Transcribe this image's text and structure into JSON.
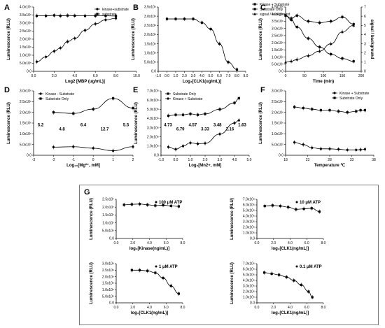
{
  "figure": {
    "panel_labels": [
      "A",
      "B",
      "C",
      "D",
      "E",
      "F",
      "G"
    ]
  },
  "chart_data": [
    {
      "id": "A",
      "type": "line",
      "xlabel": "Log2 [MBP (ug/mL)]",
      "ylabel": "Luminescence (RLU)",
      "xlim": [
        0,
        10
      ],
      "ylim": [
        0,
        4000000
      ],
      "xticks": [
        "0.0",
        "2.0",
        "4.0",
        "6.0",
        "8.0",
        "10.0"
      ],
      "yticks": [
        "0.0",
        "5.0x10⁵",
        "1.0x10⁶",
        "1.5x10⁶",
        "2.0x10⁶",
        "2.5x10⁶",
        "3.0x10⁶",
        "3.5x10⁶",
        "4.0x10⁶"
      ],
      "legend_position": "top-right",
      "series": [
        {
          "name": "kinase+substrate",
          "marker": "circle",
          "fit": "sigmoid",
          "x": [
            0.3,
            1.2,
            2.0,
            2.6,
            3.3,
            4.0,
            5.0,
            6.0,
            7.0,
            8.0
          ],
          "y": [
            600000,
            900000,
            1250000,
            1450000,
            1850000,
            2050000,
            2550000,
            2950000,
            3200000,
            3300000
          ]
        },
        {
          "name": "substrate",
          "marker": "square",
          "x": [
            0.3,
            1.2,
            2.0,
            2.6,
            3.3,
            4.0,
            5.0,
            6.0,
            7.0,
            8.0
          ],
          "y": [
            3450000,
            3450000,
            3480000,
            3450000,
            3470000,
            3460000,
            3450000,
            3450000,
            3450000,
            3440000
          ]
        }
      ]
    },
    {
      "id": "B",
      "type": "line",
      "xlabel": "Log₂[CLK1(ug/mL)]",
      "ylabel": "Luminescence (RLU)",
      "xlim": [
        -1,
        9
      ],
      "ylim": [
        0,
        3500000
      ],
      "xticks": [
        "-1.0",
        "0.0",
        "1.0",
        "2.0",
        "3.0",
        "4.0",
        "5.0",
        "6.0",
        "7.0",
        "8.0",
        "9.0"
      ],
      "yticks": [
        "0.0",
        "5.0x10⁵",
        "1.0x10⁶",
        "1.5x10⁶",
        "2.0x10⁶",
        "2.5x10⁶",
        "3.0x10⁶",
        "3.5x10⁶"
      ],
      "series": [
        {
          "marker": "square",
          "x": [
            0.0,
            1.0,
            2.0,
            3.0,
            4.0,
            5.0,
            6.0,
            7.0,
            8.0
          ],
          "y": [
            2850000,
            2850000,
            2850000,
            2850000,
            2650000,
            2300000,
            1500000,
            500000,
            100000
          ]
        }
      ]
    },
    {
      "id": "C",
      "type": "line",
      "xlabel": "Time (min)",
      "ylabel": "Luminescence (RLU)",
      "y2label": "signal / background",
      "xlim": [
        0,
        200
      ],
      "ylim": [
        0,
        4500000
      ],
      "y2lim": [
        0,
        7
      ],
      "xticks": [
        "0",
        "50",
        "100",
        "150",
        "200"
      ],
      "yticks": [
        "0.0",
        "5.0x10⁵",
        "1.0x10⁶",
        "1.5x10⁶",
        "2.0x10⁶",
        "2.5x10⁶",
        "3.0x10⁶",
        "3.5x10⁶",
        "4.0x10⁶",
        "4.5x10⁶"
      ],
      "y2ticks": [
        "0",
        "1",
        "2",
        "3",
        "4",
        "5",
        "6",
        "7"
      ],
      "legend_position": "top",
      "series": [
        {
          "name": "Kinase + Substrate",
          "marker": "square",
          "x": [
            0,
            15,
            30,
            60,
            90,
            120,
            150,
            180
          ],
          "y": [
            3900000,
            3600000,
            3100000,
            2300000,
            1700000,
            1200000,
            900000,
            700000
          ]
        },
        {
          "name": "Substrate Only",
          "marker": "square-filled",
          "x": [
            0,
            15,
            30,
            60,
            90,
            120,
            150,
            180
          ],
          "y": [
            3900000,
            3700000,
            3900000,
            3500000,
            3400000,
            3500000,
            3800000,
            3300000
          ]
        },
        {
          "name": "signal / background",
          "marker": "triangle",
          "axis": "y2",
          "x": [
            0,
            15,
            30,
            60,
            90,
            120,
            150,
            180
          ],
          "y": [
            1.0,
            1.1,
            1.3,
            1.7,
            2.2,
            3.0,
            4.3,
            5.0
          ]
        }
      ]
    },
    {
      "id": "D",
      "type": "line",
      "xlabel": "Log₁₀[Mg²⁺, mM]",
      "ylabel": "Luminescence (RLU)",
      "xlim": [
        -3,
        2
      ],
      "ylim": [
        0,
        3000000
      ],
      "xticks": [
        "-3",
        "-2",
        "-1",
        "0",
        "1",
        "2"
      ],
      "yticks": [
        "0.0",
        "5.0x10⁵",
        "1.0x10⁶",
        "1.5x10⁶",
        "2.0x10⁶",
        "2.5x10⁶",
        "3.0x10⁶"
      ],
      "legend_position": "top-left",
      "annotations": [
        "5.2",
        "4.8",
        "6.4",
        "12.7",
        "5.5"
      ],
      "series": [
        {
          "name": "Kinase - Substrate",
          "marker": "circle",
          "x": [
            -2,
            -1,
            0,
            1,
            2
          ],
          "y": [
            380000,
            400000,
            330000,
            210000,
            400000
          ]
        },
        {
          "name": "Substrate Only",
          "marker": "square",
          "x": [
            -2,
            -1,
            0,
            1,
            2
          ],
          "y": [
            2000000,
            1950000,
            2150000,
            2650000,
            2200000
          ]
        }
      ]
    },
    {
      "id": "E",
      "type": "line",
      "xlabel": "Log₂[Mn2+, mM]",
      "ylabel": "Luminescence (RLU)",
      "xlim": [
        -1,
        5
      ],
      "ylim": [
        0,
        7000000
      ],
      "xticks": [
        "-1.0",
        "0.0",
        "1.0",
        "2.0",
        "3.0",
        "4.0",
        "5.0"
      ],
      "yticks": [
        "0.0",
        "1.0x10⁶",
        "2.0x10⁶",
        "3.0x10⁶",
        "4.0x10⁶",
        "5.0x10⁶",
        "6.0x10⁶",
        "7.0x10⁶"
      ],
      "legend_position": "top-left",
      "annotations": [
        "4.73",
        "6.79",
        "4.57",
        "3.33",
        "3.48",
        "2.16",
        "1.63"
      ],
      "series": [
        {
          "name": "Substrate Only",
          "marker": "square",
          "x": [
            -0.5,
            0.0,
            0.5,
            1.0,
            1.5,
            2.0,
            3.0,
            4.0,
            4.3
          ],
          "y": [
            4300000,
            4400000,
            4400000,
            4500000,
            4400000,
            4500000,
            5000000,
            5700000,
            6200000
          ]
        },
        {
          "name": "Kinase + Substrate",
          "marker": "circle",
          "x": [
            -0.5,
            0.0,
            0.5,
            1.0,
            1.5,
            2.0,
            3.0,
            4.0,
            4.3
          ],
          "y": [
            900000,
            650000,
            1000000,
            1350000,
            1250000,
            1300000,
            2300000,
            3500000,
            3800000
          ]
        }
      ]
    },
    {
      "id": "F",
      "type": "line",
      "xlabel": "Temperature ℃",
      "ylabel": "Luminescence (RLU)",
      "xlim": [
        18,
        38
      ],
      "ylim": [
        0,
        3000000
      ],
      "xticks": [
        "18",
        "23",
        "28",
        "33",
        "38"
      ],
      "yticks": [
        "0.0",
        "5.0x10⁵",
        "1.0x10⁶",
        "1.5x10⁶",
        "2.0x10⁶",
        "2.5x10⁶",
        "3.0x10⁶"
      ],
      "legend_position": "top-right",
      "series": [
        {
          "name": "Kinase + Substrate",
          "marker": "circle",
          "x": [
            20,
            22,
            24,
            26,
            28,
            30,
            32,
            34,
            35,
            36
          ],
          "y": [
            600000,
            500000,
            350000,
            300000,
            300000,
            280000,
            250000,
            250000,
            260000,
            280000
          ]
        },
        {
          "name": "Substrate Only",
          "marker": "square",
          "x": [
            20,
            22,
            24,
            26,
            28,
            30,
            32,
            34,
            35,
            36
          ],
          "y": [
            2250000,
            2200000,
            2150000,
            2100000,
            2100000,
            2050000,
            2000000,
            2050000,
            2100000,
            2100000
          ]
        }
      ]
    },
    {
      "id": "G1",
      "type": "line",
      "xlabel": "log₂[Kinase(ng/mL)]",
      "ylabel": "Luminescence (RLU)",
      "legend": "100 μM ATP",
      "xlim": [
        0,
        8.5
      ],
      "ylim": [
        0,
        25000000
      ],
      "xticks": [
        "0.0",
        "2.0",
        "4.0",
        "6.0",
        "8.0"
      ],
      "yticks": [
        "0.0",
        "5.0x10⁶",
        "1.0x10⁷",
        "1.5x10⁷",
        "2.0x10⁷",
        "2.5x10⁷"
      ],
      "series": [
        {
          "marker": "square",
          "x": [
            1.0,
            2.0,
            3.0,
            4.0,
            5.0,
            6.0,
            7.0,
            8.0
          ],
          "y": [
            21500000,
            21800000,
            22000000,
            21500000,
            21000000,
            21300000,
            20800000,
            20500000
          ]
        }
      ]
    },
    {
      "id": "G2",
      "type": "line",
      "xlabel": "log₂[CLK1(ng/mL)]",
      "ylabel": "Luminescence (RLU)",
      "legend": "10 μM ATP",
      "xlim": [
        0,
        8.5
      ],
      "ylim": [
        0,
        7000000
      ],
      "xticks": [
        "0.0",
        "2.0",
        "4.0",
        "6.0",
        "8.0"
      ],
      "yticks": [
        "0.0",
        "1.0x10⁶",
        "2.0x10⁶",
        "3.0x10⁶",
        "4.0x10⁶",
        "5.0x10⁶",
        "6.0x10⁶",
        "7.0x10⁶"
      ],
      "series": [
        {
          "marker": "square",
          "x": [
            1.0,
            2.0,
            3.0,
            4.0,
            5.0,
            6.0,
            7.0,
            8.0
          ],
          "y": [
            5800000,
            5900000,
            5800000,
            5600000,
            5200000,
            5300000,
            5400000,
            4800000
          ]
        }
      ]
    },
    {
      "id": "G3",
      "type": "line",
      "xlabel": "log₂[CLK1(ng/mL)]",
      "ylabel": "Luminescence (RLU)",
      "legend": "1 μM ATP",
      "xlim": [
        0,
        8.5
      ],
      "ylim": [
        0,
        3000000
      ],
      "xticks": [
        "0.0",
        "2.0",
        "4.0",
        "6.0",
        "8.0"
      ],
      "yticks": [
        "0.0",
        "5.0x10⁵",
        "1.0x10⁶",
        "1.5x10⁶",
        "2.0x10⁶",
        "2.5x10⁶",
        "3.0x10⁶"
      ],
      "series": [
        {
          "marker": "square",
          "x": [
            2.0,
            3.0,
            4.0,
            5.0,
            6.0,
            7.0,
            8.0
          ],
          "y": [
            2500000,
            2500000,
            2450000,
            2300000,
            1900000,
            1300000,
            700000
          ]
        }
      ]
    },
    {
      "id": "G4",
      "type": "line",
      "xlabel": "log₂[CLK1(ng/mL)]",
      "ylabel": "Luminescence (RLU)",
      "legend": "0.1 μM ATP",
      "xlim": [
        0,
        9
      ],
      "ylim": [
        0,
        7000000
      ],
      "xticks": [
        "0.0",
        "2.0",
        "4.0",
        "6.0",
        "8.0"
      ],
      "yticks": [
        "0.0",
        "1.0x10⁶",
        "2.0x10⁶",
        "3.0x10⁶",
        "4.0x10⁶",
        "5.0x10⁶",
        "6.0x10⁶",
        "7.0x10⁶"
      ],
      "series": [
        {
          "marker": "square",
          "x": [
            1.0,
            2.0,
            3.0,
            4.0,
            5.0,
            6.0,
            7.0,
            7.5
          ],
          "y": [
            5400000,
            5200000,
            5000000,
            4600000,
            4000000,
            3200000,
            2000000,
            1000000
          ]
        }
      ]
    }
  ]
}
